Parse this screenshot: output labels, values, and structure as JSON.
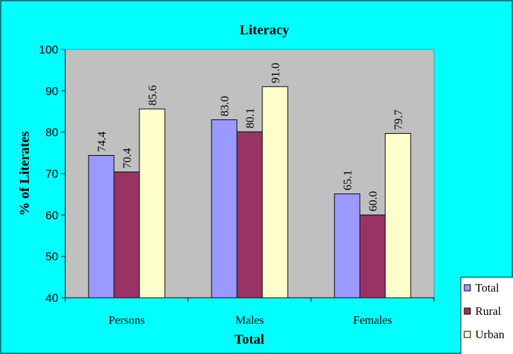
{
  "colors": {
    "background": "#00ffff",
    "plot_area": "#c0c0c0",
    "series": [
      "#9999ff",
      "#993366",
      "#ffffcc"
    ]
  },
  "chart_data": {
    "type": "bar",
    "title": "Literacy",
    "xlabel": "Total",
    "ylabel": "% of Literates",
    "categories": [
      "Persons",
      "Males",
      "Females"
    ],
    "series": [
      {
        "name": "Total",
        "values": [
          74.4,
          83.0,
          65.1
        ],
        "labels": [
          "74.4",
          "83.0",
          "65.1"
        ]
      },
      {
        "name": "Rural",
        "values": [
          70.4,
          80.1,
          60.0
        ],
        "labels": [
          "70.4",
          "80.1",
          "60.0"
        ]
      },
      {
        "name": "Urban",
        "values": [
          85.6,
          91.0,
          79.7
        ],
        "labels": [
          "85.6",
          "91.0",
          "79.7"
        ]
      }
    ],
    "ylim": [
      40,
      100
    ],
    "yticks": [
      "40",
      "50",
      "60",
      "70",
      "80",
      "90",
      "100"
    ],
    "grid": false,
    "legend": "bottom-right"
  }
}
